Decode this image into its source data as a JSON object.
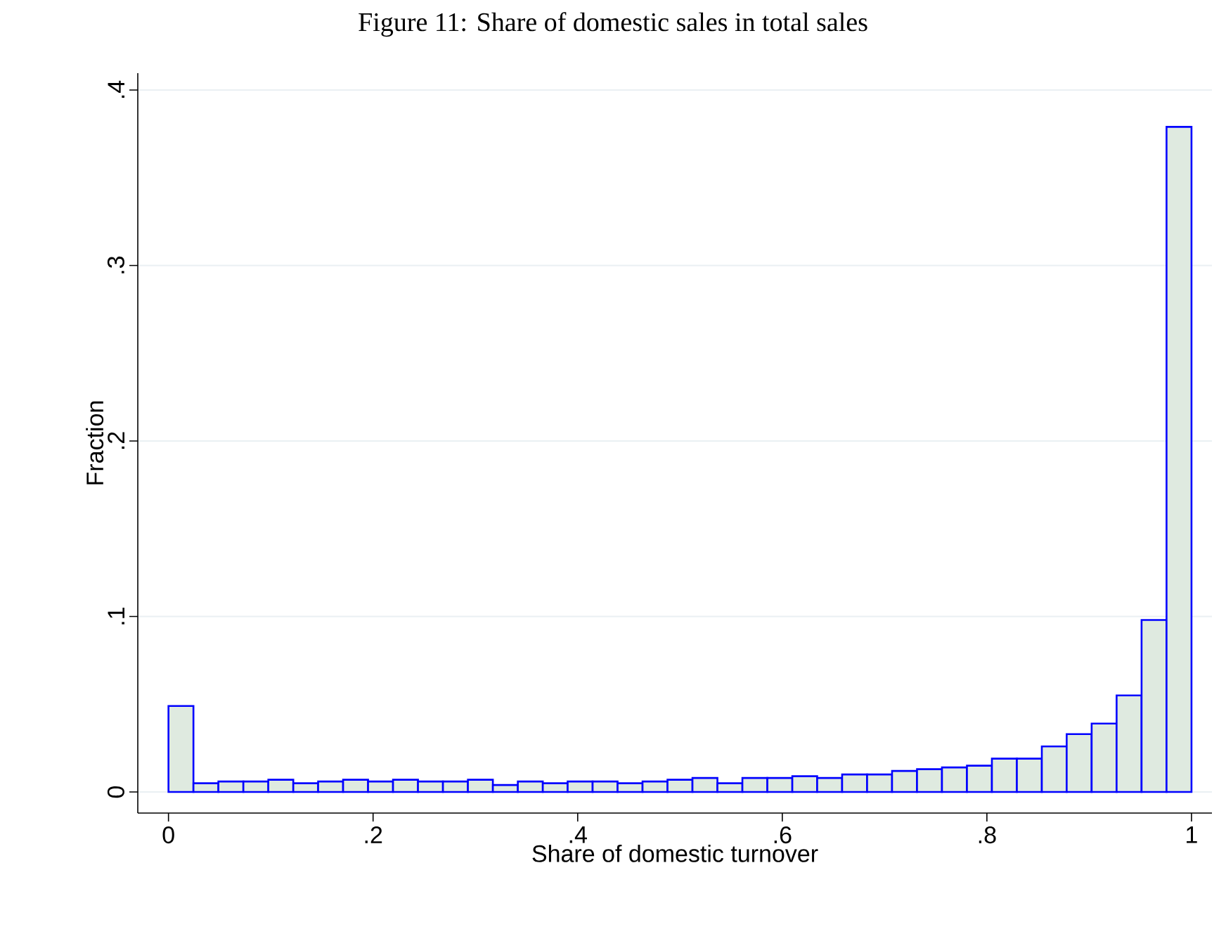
{
  "chart_data": {
    "type": "histogram",
    "title": "Figure 11: Share of domestic sales in total sales",
    "xlabel": "Share of domestic turnover",
    "ylabel": "Fraction",
    "bins": [
      0,
      0.0244,
      0.0488,
      0.0732,
      0.0976,
      0.122,
      0.1463,
      0.1707,
      0.1951,
      0.2195,
      0.2439,
      0.2683,
      0.2927,
      0.3171,
      0.3415,
      0.3659,
      0.3902,
      0.4146,
      0.439,
      0.4634,
      0.4878,
      0.5122,
      0.5366,
      0.561,
      0.5854,
      0.6098,
      0.6341,
      0.6585,
      0.6829,
      0.7073,
      0.7317,
      0.7561,
      0.7805,
      0.8049,
      0.8293,
      0.8537,
      0.878,
      0.9024,
      0.9268,
      0.9512,
      0.9756,
      1
    ],
    "values": [
      0.049,
      0.005,
      0.006,
      0.006,
      0.007,
      0.005,
      0.006,
      0.007,
      0.006,
      0.007,
      0.006,
      0.006,
      0.007,
      0.004,
      0.006,
      0.005,
      0.006,
      0.006,
      0.005,
      0.006,
      0.007,
      0.008,
      0.005,
      0.008,
      0.008,
      0.009,
      0.008,
      0.01,
      0.01,
      0.012,
      0.013,
      0.014,
      0.015,
      0.019,
      0.019,
      0.026,
      0.033,
      0.039,
      0.055,
      0.098,
      0.379
    ],
    "color": "#dfeae0",
    "xlim": [
      -0.03,
      1.02
    ],
    "ylim": [
      0,
      0.4
    ],
    "xticks": [
      0,
      {
        "value": 0.2,
        "label": ".2"
      },
      {
        "value": 0.4,
        "label": ".4"
      },
      {
        "value": 0.6,
        "label": ".6"
      },
      {
        "value": 0.8,
        "label": ".8"
      },
      1
    ],
    "yticks": [
      0,
      {
        "value": 0.1,
        "label": ".1"
      },
      {
        "value": 0.2,
        "label": ".2"
      },
      {
        "value": 0.3,
        "label": ".3"
      },
      {
        "value": 0.4,
        "label": ".4"
      }
    ],
    "grid": "y"
  }
}
